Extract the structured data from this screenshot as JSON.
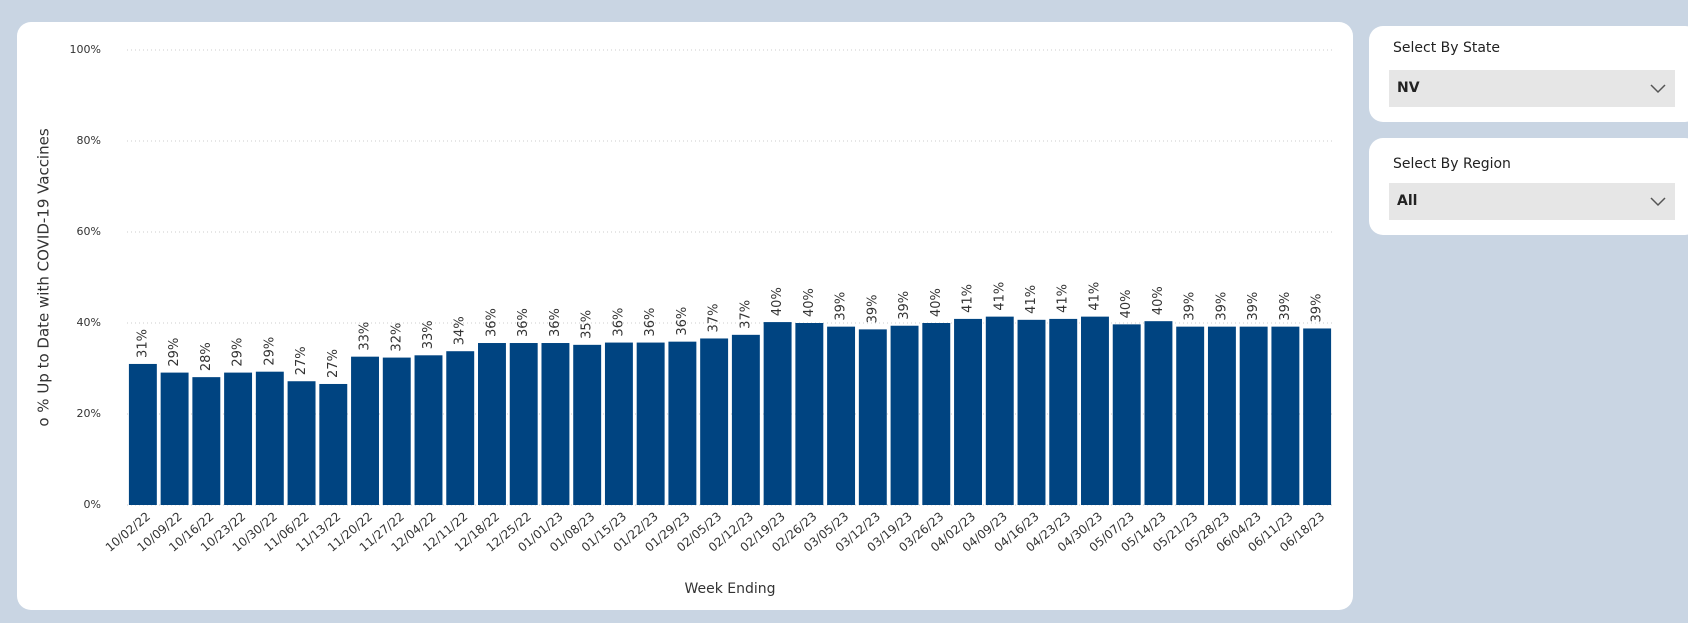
{
  "chart_data": {
    "type": "bar",
    "x_label": "Week Ending",
    "y_label": "o % Up to Date with COVID-19 Vaccines",
    "categories": [
      "10/02/22",
      "10/09/22",
      "10/16/22",
      "10/23/22",
      "10/30/22",
      "11/06/22",
      "11/13/22",
      "11/20/22",
      "11/27/22",
      "12/04/22",
      "12/11/22",
      "12/18/22",
      "12/25/22",
      "01/01/23",
      "01/08/23",
      "01/15/23",
      "01/22/23",
      "01/29/23",
      "02/05/23",
      "02/12/23",
      "02/19/23",
      "02/26/23",
      "03/05/23",
      "03/12/23",
      "03/19/23",
      "03/26/23",
      "04/02/23",
      "04/09/23",
      "04/16/23",
      "04/23/23",
      "04/30/23",
      "05/07/23",
      "05/14/23",
      "05/21/23",
      "05/28/23",
      "06/04/23",
      "06/11/23",
      "06/18/23"
    ],
    "values": [
      31.0,
      29.1,
      28.1,
      29.1,
      29.3,
      27.2,
      26.6,
      32.6,
      32.4,
      32.9,
      33.8,
      35.6,
      35.6,
      35.6,
      35.2,
      35.7,
      35.7,
      35.9,
      36.6,
      37.4,
      40.2,
      40.0,
      39.2,
      38.6,
      39.4,
      40.0,
      40.9,
      41.4,
      40.7,
      40.9,
      41.4,
      39.7,
      40.4,
      39.2,
      39.2,
      39.2,
      39.2,
      38.8
    ],
    "value_labels": [
      "31%",
      "29%",
      "28%",
      "29%",
      "29%",
      "27%",
      "27%",
      "33%",
      "32%",
      "33%",
      "34%",
      "36%",
      "36%",
      "36%",
      "35%",
      "36%",
      "36%",
      "36%",
      "37%",
      "37%",
      "40%",
      "40%",
      "39%",
      "39%",
      "39%",
      "40%",
      "41%",
      "41%",
      "41%",
      "41%",
      "41%",
      "40%",
      "40%",
      "39%",
      "39%",
      "39%",
      "39%",
      "39%"
    ],
    "color": "#004481",
    "ylim": [
      0,
      100
    ],
    "yticks": [
      {
        "value": 0,
        "label": "0%"
      },
      {
        "value": 20,
        "label": "20%"
      },
      {
        "value": 40,
        "label": "40%"
      },
      {
        "value": 60,
        "label": "60%"
      },
      {
        "value": 80,
        "label": "80%"
      },
      {
        "value": 100,
        "label": "100%"
      }
    ],
    "grid": true
  },
  "slicers": [
    {
      "title": "Select By State",
      "value": "NV"
    },
    {
      "title": "Select By Region",
      "value": "All"
    }
  ]
}
